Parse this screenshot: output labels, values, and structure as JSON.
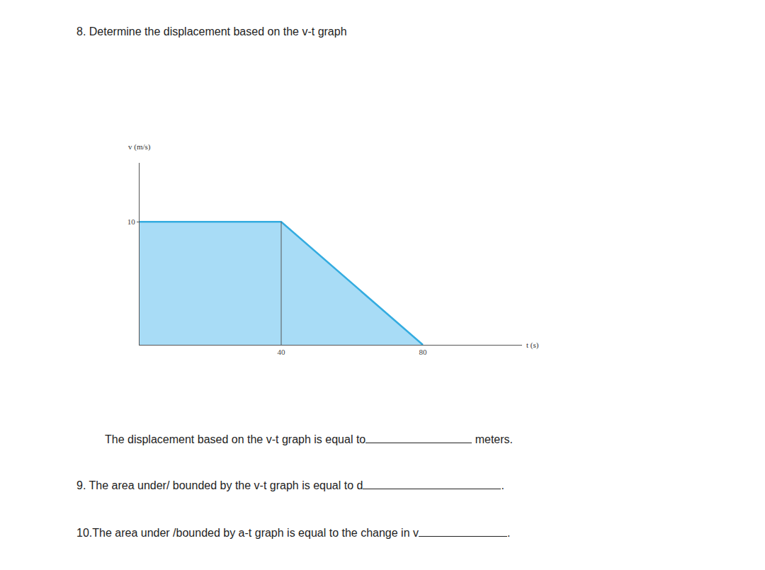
{
  "question_8": {
    "prompt": "8. Determine the displacement based on the v-t graph",
    "answer_line": {
      "before": "The displacement based on the v-t graph is equal to",
      "after": "meters."
    }
  },
  "question_9": {
    "before": "9. The area under/ bounded by the v-t graph is equal to d",
    "after": "."
  },
  "question_10": {
    "before": "10.The area under /bounded by a-t graph is equal to the change in v",
    "after": "."
  },
  "chart_data": {
    "type": "area",
    "x_label": "t (s)",
    "y_label": "v (m/s)",
    "x": [
      0,
      40,
      80
    ],
    "values": [
      10,
      10,
      0
    ],
    "color": "#a8dcf6",
    "xlim": [
      0,
      108
    ],
    "ylim": [
      0,
      14.8
    ],
    "xticks": [
      40,
      80
    ],
    "yticks": [
      10
    ],
    "grid": false
  }
}
